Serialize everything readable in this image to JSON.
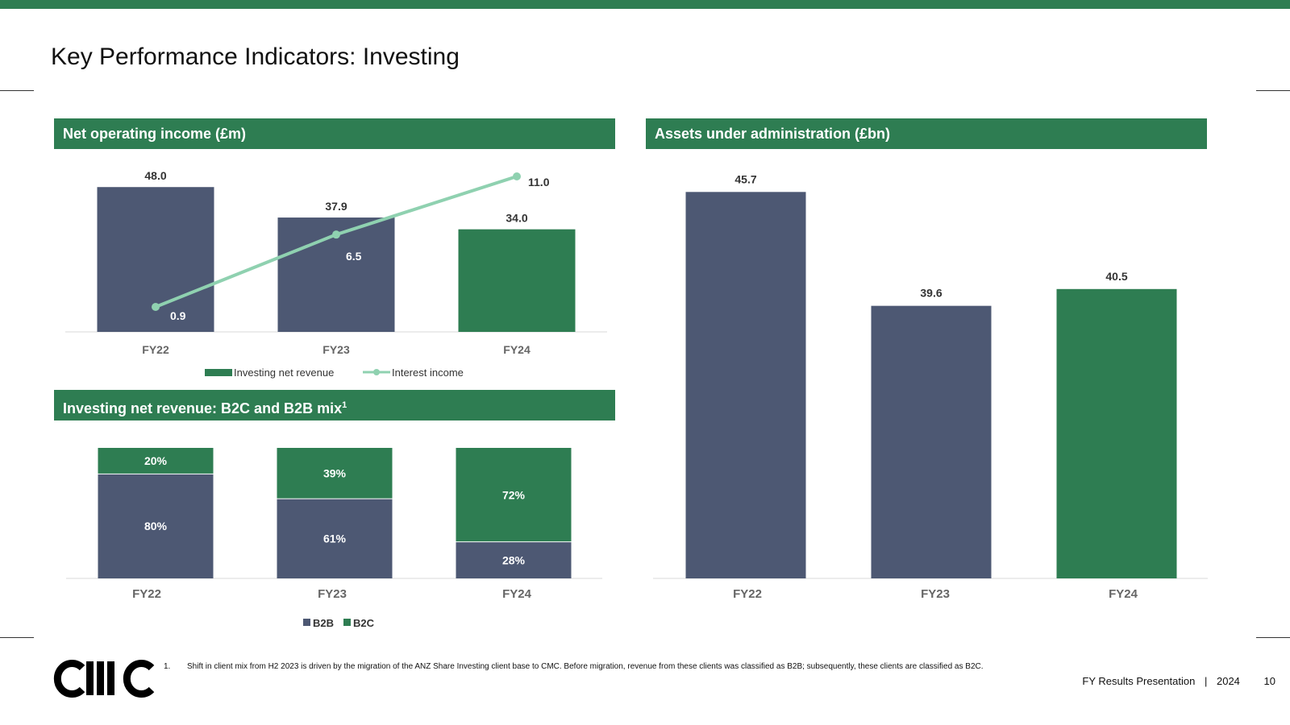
{
  "colors": {
    "green": "#2e7d52",
    "navy": "#4d5873",
    "mint": "#8fd1b0",
    "label_dark": "#333333",
    "axis_label": "#666666"
  },
  "page": {
    "title": "Key Performance Indicators: Investing",
    "logo_text": "CMC",
    "footnote_number": "1.",
    "footnote_text": "Shift in client mix from H2 2023 is driven by the migration of the ANZ Share Investing client base to CMC. Before migration, revenue from these clients was classified as B2B; subsequently, these clients are classified as B2C.",
    "footer_label": "FY Results Presentation",
    "footer_separator": "|",
    "footer_year": "2024",
    "page_number": "10"
  },
  "panels": {
    "noi_title": "Net operating income (£m)",
    "mix_title": "Investing net revenue: B2C and B2B mix",
    "mix_title_sup": "1",
    "aua_title": "Assets under administration (£bn)"
  },
  "chart_data": [
    {
      "id": "noi",
      "type": "bar",
      "categories": [
        "FY22",
        "FY23",
        "FY24"
      ],
      "series": [
        {
          "name": "Investing net revenue",
          "kind": "bar",
          "values": [
            48.0,
            37.9,
            34.0
          ],
          "labels": [
            "48.0",
            "37.9",
            "34.0"
          ],
          "bar_colors": [
            "#4d5873",
            "#4d5873",
            "#2e7d52"
          ],
          "legend_color": "#2e7d52"
        },
        {
          "name": "Interest income",
          "kind": "line",
          "values": [
            0.9,
            6.5,
            11.0
          ],
          "labels": [
            "0.9",
            "6.5",
            "11.0"
          ],
          "color": "#8fd1b0"
        }
      ],
      "ylim": [
        0,
        55
      ],
      "line_ylim": [
        0,
        12
      ],
      "legend": "bottom"
    },
    {
      "id": "mix",
      "type": "bar",
      "stacked": true,
      "categories": [
        "FY22",
        "FY23",
        "FY24"
      ],
      "series": [
        {
          "name": "B2B",
          "values": [
            80,
            61,
            28
          ],
          "labels": [
            "80%",
            "61%",
            "28%"
          ],
          "color": "#4d5873"
        },
        {
          "name": "B2C",
          "values": [
            20,
            39,
            72
          ],
          "labels": [
            "20%",
            "39%",
            "72%"
          ],
          "color": "#2e7d52"
        }
      ],
      "ylim": [
        0,
        100
      ],
      "legend": "bottom"
    },
    {
      "id": "aua",
      "type": "bar",
      "categories": [
        "FY22",
        "FY23",
        "FY24"
      ],
      "values": [
        45.7,
        39.6,
        40.5
      ],
      "labels": [
        "45.7",
        "39.6",
        "40.5"
      ],
      "bar_colors": [
        "#4d5873",
        "#4d5873",
        "#2e7d52"
      ],
      "ylim": [
        25,
        48
      ]
    }
  ]
}
